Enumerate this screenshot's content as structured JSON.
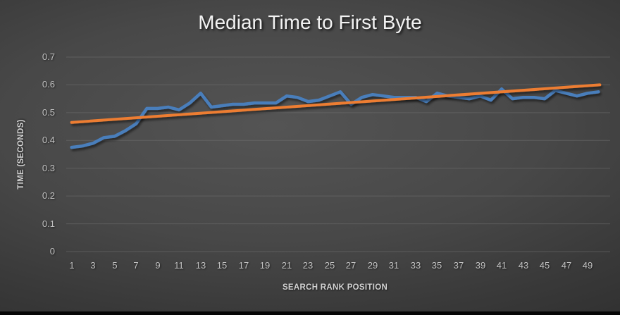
{
  "chart_data": {
    "type": "line",
    "title": "Median Time to First Byte",
    "xlabel": "SEARCH RANK POSITION",
    "ylabel": "TIME (SECONDS)",
    "x": [
      1,
      2,
      3,
      4,
      5,
      6,
      7,
      8,
      9,
      10,
      11,
      12,
      13,
      14,
      15,
      16,
      17,
      18,
      19,
      20,
      21,
      22,
      23,
      24,
      25,
      26,
      27,
      28,
      29,
      30,
      31,
      32,
      33,
      34,
      35,
      36,
      37,
      38,
      39,
      40,
      41,
      42,
      43,
      44,
      45,
      46,
      47,
      48,
      49,
      50
    ],
    "x_tick_labels": [
      "1",
      "3",
      "5",
      "7",
      "9",
      "11",
      "13",
      "15",
      "17",
      "19",
      "21",
      "23",
      "25",
      "27",
      "29",
      "31",
      "33",
      "35",
      "37",
      "39",
      "41",
      "43",
      "45",
      "47",
      "49"
    ],
    "y_ticks": [
      0,
      0.1,
      0.2,
      0.3,
      0.4,
      0.5,
      0.6,
      0.7
    ],
    "y_tick_labels": [
      "0",
      "0.1",
      "0.2",
      "0.3",
      "0.4",
      "0.5",
      "0.6",
      "0.7"
    ],
    "ylim": [
      0,
      0.7
    ],
    "grid": true,
    "legend": false,
    "series": [
      {
        "name": "median-ttfb-line",
        "type": "line",
        "color": "#4a7ebb",
        "values": [
          0.375,
          0.38,
          0.39,
          0.41,
          0.415,
          0.435,
          0.46,
          0.515,
          0.515,
          0.52,
          0.51,
          0.535,
          0.57,
          0.52,
          0.525,
          0.53,
          0.53,
          0.535,
          0.535,
          0.535,
          0.56,
          0.555,
          0.54,
          0.545,
          0.56,
          0.575,
          0.53,
          0.555,
          0.565,
          0.56,
          0.555,
          0.555,
          0.555,
          0.54,
          0.57,
          0.56,
          0.555,
          0.55,
          0.56,
          0.545,
          0.585,
          0.55,
          0.555,
          0.555,
          0.55,
          0.58,
          0.57,
          0.56,
          0.57,
          0.575
        ]
      },
      {
        "name": "linear-trendline",
        "type": "trendline",
        "color": "#ed7d31",
        "start": 0.465,
        "end": 0.6
      }
    ]
  },
  "colors": {
    "background_center": "#545454",
    "background_edge": "#272727",
    "bottom_bar": "#060606",
    "gridline": "#7a7a7a",
    "tick_text": "#c2c2c2",
    "axis_title_text": "#d4d4d4",
    "title_text": "#f2f2f2",
    "series_blue": "#4a7ebb",
    "trend_orange": "#ed7d31"
  }
}
